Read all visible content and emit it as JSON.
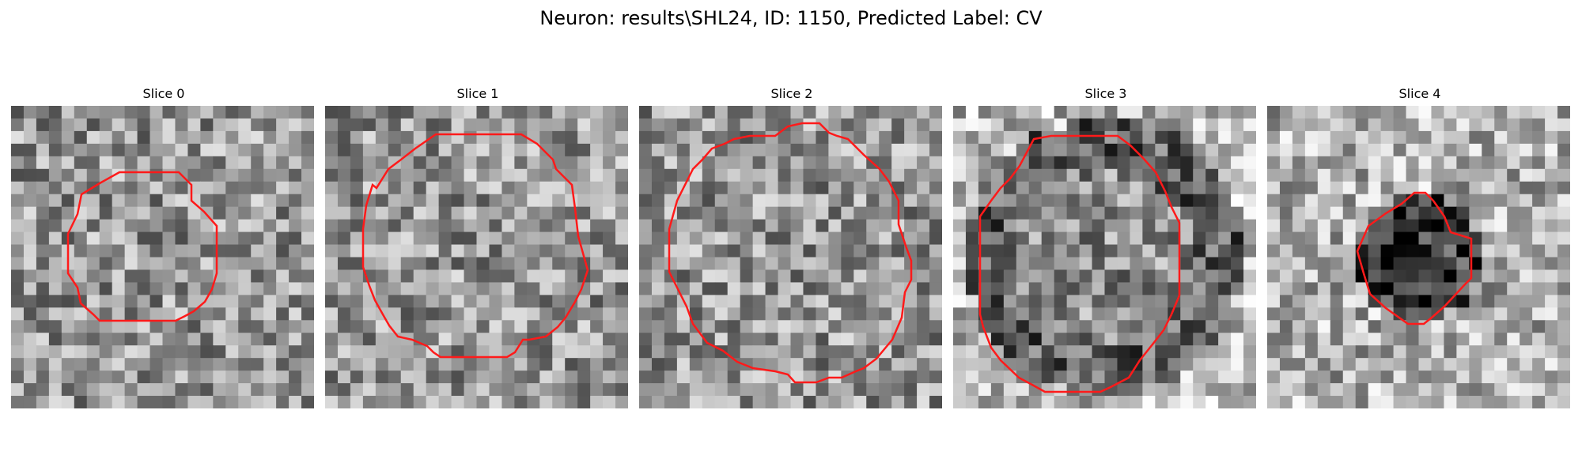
{
  "figure": {
    "title": "Neuron: results\\SHL24, ID: 1150, Predicted Label: CV"
  },
  "panels": [
    {
      "title": "Slice 0"
    },
    {
      "title": "Slice 1"
    },
    {
      "title": "Slice 2"
    },
    {
      "title": "Slice 3"
    },
    {
      "title": "Slice 4"
    }
  ],
  "colors": {
    "contour": "#ff1a1a",
    "colormap": "gray"
  }
}
